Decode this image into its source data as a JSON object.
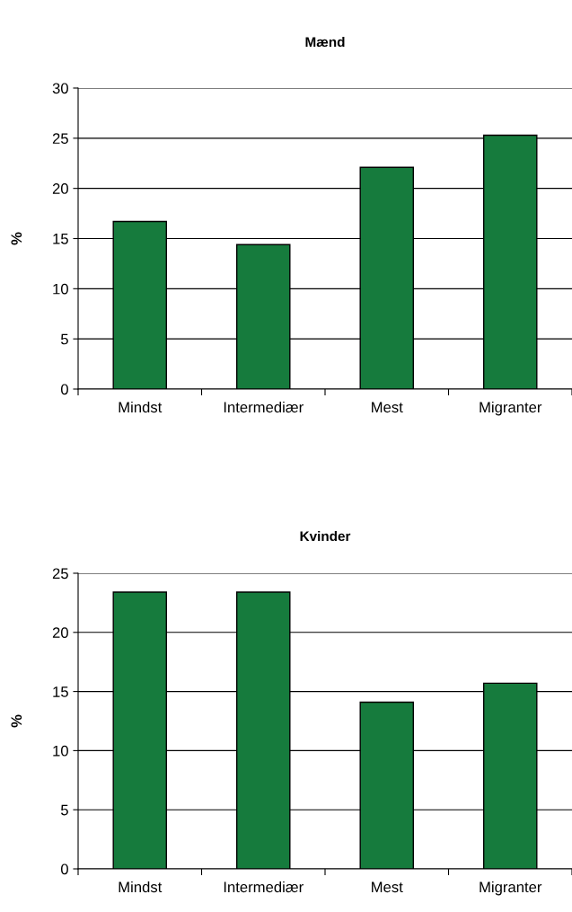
{
  "chart_data": [
    {
      "type": "bar",
      "title": "Mænd",
      "ylabel": "%",
      "categories": [
        "Mindst",
        "Intermediær",
        "Mest",
        "Migranter"
      ],
      "values": [
        16.7,
        14.4,
        22.1,
        25.3
      ],
      "color": "#167b3d",
      "ylim": [
        0,
        30
      ],
      "yticks": [
        0,
        5,
        10,
        15,
        20,
        25,
        30
      ],
      "grid": "y",
      "legend": false
    },
    {
      "type": "bar",
      "title": "Kvinder",
      "ylabel": "%",
      "categories": [
        "Mindst",
        "Intermediær",
        "Mest",
        "Migranter"
      ],
      "values": [
        23.4,
        23.4,
        14.1,
        15.7
      ],
      "color": "#167b3d",
      "ylim": [
        0,
        25
      ],
      "yticks": [
        0,
        5,
        10,
        15,
        20,
        25
      ],
      "grid": "y",
      "legend": false
    }
  ]
}
